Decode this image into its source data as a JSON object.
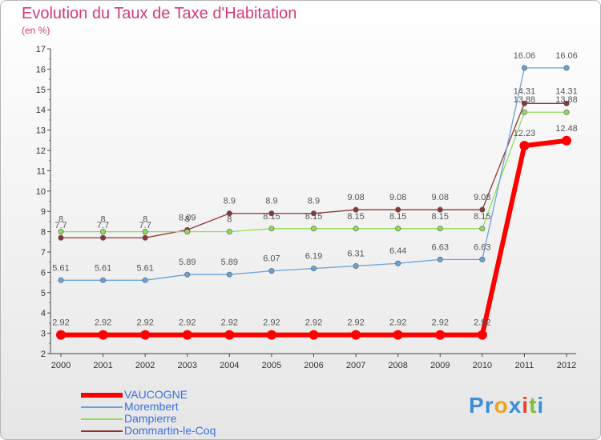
{
  "header": {
    "title": "Evolution du Taux de Taxe d'Habitation",
    "subtitle": "(en %)"
  },
  "logo": {
    "text": "Proxiti",
    "letters": [
      {
        "ch": "P",
        "color": "#3b8ed9"
      },
      {
        "ch": "r",
        "color": "#3b8ed9"
      },
      {
        "ch": "o",
        "color": "#f0a11c"
      },
      {
        "ch": "x",
        "color": "#3b8ed9"
      },
      {
        "ch": "i",
        "color": "#e8412c"
      },
      {
        "ch": "t",
        "color": "#7cbf3a"
      },
      {
        "ch": "i",
        "color": "#3b8ed9"
      }
    ]
  },
  "chart_data": {
    "type": "line",
    "title": "Evolution du Taux de Taxe d'Habitation",
    "ylabel": "(en %)",
    "x": [
      "2000",
      "2001",
      "2002",
      "2003",
      "2004",
      "2005",
      "2006",
      "2007",
      "2008",
      "2009",
      "2010",
      "2011",
      "2012"
    ],
    "ylim": [
      2,
      17
    ],
    "yticks": [
      2,
      3,
      4,
      5,
      6,
      7,
      8,
      9,
      10,
      11,
      12,
      13,
      14,
      15,
      16,
      17
    ],
    "grid": false,
    "legend": "bottom-left",
    "series": [
      {
        "name": "VAUCOGNE",
        "color": "#ff0000",
        "values": [
          2.92,
          2.92,
          2.92,
          2.92,
          2.92,
          2.92,
          2.92,
          2.92,
          2.92,
          2.92,
          2.92,
          12.23,
          12.48
        ],
        "labels": [
          "2.92",
          "2.92",
          "2.92",
          "2.92",
          "2.92",
          "2.92",
          "2.92",
          "2.92",
          "2.92",
          "2.92",
          "2.92",
          "12.23",
          "12.48"
        ]
      },
      {
        "name": "Morembert",
        "color": "#6aa3d8",
        "values": [
          5.61,
          5.61,
          5.61,
          5.89,
          5.89,
          6.07,
          6.19,
          6.31,
          6.44,
          6.63,
          6.63,
          16.06,
          16.06
        ],
        "labels": [
          "5.61",
          "5.61",
          "5.61",
          "5.89",
          "5.89",
          "6.07",
          "6.19",
          "6.31",
          "6.44",
          "6.63",
          "6.63",
          "16.06",
          "16.06"
        ]
      },
      {
        "name": "Dampierre",
        "color": "#90dc5a",
        "values": [
          8,
          8,
          8,
          8,
          8,
          8.15,
          8.15,
          8.15,
          8.15,
          8.15,
          8.15,
          13.88,
          13.88
        ],
        "labels": [
          "8",
          "8",
          "8",
          "8",
          "8",
          "8.15",
          "8.15",
          "8.15",
          "8.15",
          "8.15",
          "8.15",
          "13.88",
          "13.88"
        ]
      },
      {
        "name": "Dommartin-le-Coq",
        "color": "#8b3535",
        "values": [
          7.7,
          7.7,
          7.7,
          8.09,
          8.9,
          8.9,
          8.9,
          9.08,
          9.08,
          9.08,
          9.08,
          14.31,
          14.31
        ],
        "labels": [
          "7.7",
          "7.7",
          "7.7",
          "8.09",
          "8.9",
          "8.9",
          "8.9",
          "9.08",
          "9.08",
          "9.08",
          "9.08",
          "14.31",
          "14.31"
        ]
      }
    ]
  }
}
